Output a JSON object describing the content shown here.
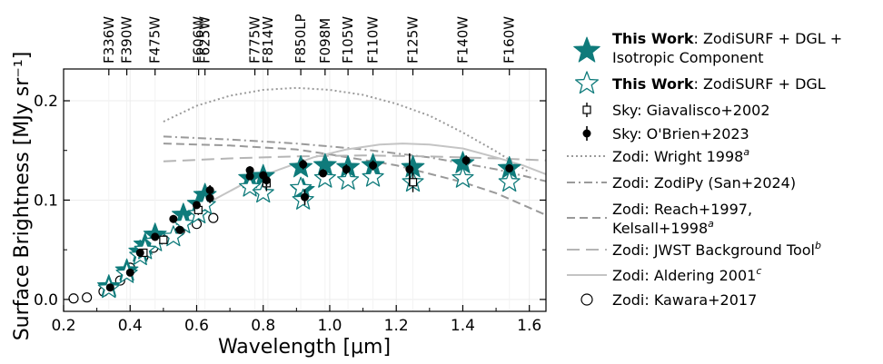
{
  "chart_data": {
    "type": "scatter",
    "xlabel": "Wavelength [μm]",
    "ylabel": "Surface Brightness [MJy sr⁻¹]",
    "xlim": [
      0.2,
      1.65
    ],
    "ylim": [
      -0.012,
      0.232
    ],
    "xticks": [
      0.2,
      0.4,
      0.6,
      0.8,
      1.0,
      1.2,
      1.4,
      1.6
    ],
    "xtick_labels": [
      "0.2",
      "0.4",
      "0.6",
      "0.8",
      "1.0",
      "1.2",
      "1.4",
      "1.6"
    ],
    "yticks": [
      0.0,
      0.1,
      0.2
    ],
    "ytick_labels": [
      "0.0",
      "0.1",
      "0.2"
    ],
    "grid": true,
    "filters": [
      {
        "name": "F336W",
        "x": 0.336
      },
      {
        "name": "F390W",
        "x": 0.39
      },
      {
        "name": "F475W",
        "x": 0.475
      },
      {
        "name": "F606W",
        "x": 0.606
      },
      {
        "name": "F625W",
        "x": 0.625
      },
      {
        "name": "F775W",
        "x": 0.775
      },
      {
        "name": "F814W",
        "x": 0.814
      },
      {
        "name": "F850LP",
        "x": 0.913
      },
      {
        "name": "F098M",
        "x": 0.986
      },
      {
        "name": "F105W",
        "x": 1.055
      },
      {
        "name": "F110W",
        "x": 1.13
      },
      {
        "name": "F125W",
        "x": 1.25
      },
      {
        "name": "F140W",
        "x": 1.4
      },
      {
        "name": "F160W",
        "x": 1.54
      }
    ],
    "series": {
      "this_work_full": {
        "name": "This Work: ZodiSURF + DGL + Isotropic Component",
        "color": "#0f7b7b",
        "points": [
          [
            0.336,
            0.013
          ],
          [
            0.39,
            0.029
          ],
          [
            0.43,
            0.048
          ],
          [
            0.475,
            0.065
          ],
          [
            0.445,
            0.055
          ],
          [
            0.56,
            0.085
          ],
          [
            0.606,
            0.096
          ],
          [
            0.625,
            0.105
          ],
          [
            0.76,
            0.122
          ],
          [
            0.8,
            0.124
          ],
          [
            0.913,
            0.133
          ],
          [
            0.92,
            0.11
          ],
          [
            0.986,
            0.135
          ],
          [
            1.055,
            0.133
          ],
          [
            1.13,
            0.135
          ],
          [
            1.25,
            0.133
          ],
          [
            1.4,
            0.137
          ],
          [
            1.54,
            0.132
          ]
        ]
      },
      "this_work_dgl": {
        "name": "This Work: ZodiSURF + DGL",
        "color": "#0f7b7b",
        "points": [
          [
            0.336,
            0.011
          ],
          [
            0.39,
            0.026
          ],
          [
            0.43,
            0.044
          ],
          [
            0.475,
            0.058
          ],
          [
            0.445,
            0.05
          ],
          [
            0.53,
            0.063
          ],
          [
            0.56,
            0.076
          ],
          [
            0.606,
            0.086
          ],
          [
            0.625,
            0.095
          ],
          [
            0.76,
            0.113
          ],
          [
            0.8,
            0.107
          ],
          [
            0.913,
            0.112
          ],
          [
            0.92,
            0.1
          ],
          [
            0.986,
            0.122
          ],
          [
            1.055,
            0.12
          ],
          [
            1.13,
            0.123
          ],
          [
            1.25,
            0.118
          ],
          [
            1.4,
            0.122
          ],
          [
            1.54,
            0.118
          ]
        ]
      },
      "giavalisco": {
        "name": "Sky: Giavalisco+2002",
        "points": [
          [
            0.44,
            0.047,
            0.004
          ],
          [
            0.5,
            0.06,
            0.004
          ],
          [
            0.605,
            0.09,
            0.005
          ],
          [
            0.81,
            0.117,
            0.008
          ],
          [
            1.25,
            0.118,
            0.01
          ]
        ]
      },
      "obrien": {
        "name": "Sky: O'Brien+2023",
        "points": [
          [
            0.34,
            0.012,
            0.002
          ],
          [
            0.4,
            0.027,
            0.003
          ],
          [
            0.43,
            0.047,
            0.004
          ],
          [
            0.475,
            0.063,
            0.004
          ],
          [
            0.53,
            0.081,
            0.004
          ],
          [
            0.55,
            0.07,
            0.004
          ],
          [
            0.6,
            0.095,
            0.004
          ],
          [
            0.64,
            0.11,
            0.005
          ],
          [
            0.64,
            0.102,
            0.005
          ],
          [
            0.76,
            0.13,
            0.004
          ],
          [
            0.76,
            0.124,
            0.004
          ],
          [
            0.8,
            0.125,
            0.004
          ],
          [
            0.81,
            0.12,
            0.006
          ],
          [
            0.92,
            0.136,
            0.005
          ],
          [
            0.925,
            0.103,
            0.008
          ],
          [
            0.98,
            0.127,
            0.004
          ],
          [
            1.05,
            0.131,
            0.005
          ],
          [
            1.13,
            0.135,
            0.005
          ],
          [
            1.24,
            0.131,
            0.016
          ],
          [
            1.41,
            0.14,
            0.005
          ],
          [
            1.54,
            0.132,
            0.004
          ]
        ]
      },
      "wright": {
        "name": "Zodi: Wright 1998",
        "superscript": "a",
        "color": "#9a9a9a",
        "points": [
          [
            0.5,
            0.179
          ],
          [
            0.6,
            0.195
          ],
          [
            0.7,
            0.205
          ],
          [
            0.8,
            0.211
          ],
          [
            0.9,
            0.213
          ],
          [
            1.0,
            0.211
          ],
          [
            1.1,
            0.206
          ],
          [
            1.2,
            0.197
          ],
          [
            1.3,
            0.185
          ],
          [
            1.4,
            0.168
          ],
          [
            1.5,
            0.149
          ],
          [
            1.6,
            0.128
          ]
        ]
      },
      "zodipy": {
        "name": "Zodi: ZodiPy (San+2024)",
        "color": "#9a9a9a",
        "points": [
          [
            0.5,
            0.164
          ],
          [
            0.7,
            0.161
          ],
          [
            0.9,
            0.157
          ],
          [
            1.1,
            0.151
          ],
          [
            1.3,
            0.143
          ],
          [
            1.5,
            0.131
          ],
          [
            1.65,
            0.119
          ]
        ]
      },
      "reach": {
        "name": "Zodi: Reach+1997, Kelsall+1998",
        "superscript": "a",
        "color": "#9a9a9a",
        "points": [
          [
            0.5,
            0.157
          ],
          [
            0.7,
            0.155
          ],
          [
            0.9,
            0.151
          ],
          [
            1.0,
            0.146
          ],
          [
            1.2,
            0.135
          ],
          [
            1.4,
            0.118
          ],
          [
            1.5,
            0.107
          ],
          [
            1.65,
            0.085
          ]
        ]
      },
      "jwst": {
        "name": "Zodi: JWST Background Tool",
        "superscript": "b",
        "color": "#b5b5b5",
        "points": [
          [
            0.5,
            0.139
          ],
          [
            0.7,
            0.142
          ],
          [
            0.9,
            0.144
          ],
          [
            1.1,
            0.145
          ],
          [
            1.3,
            0.144
          ],
          [
            1.5,
            0.142
          ],
          [
            1.65,
            0.14
          ]
        ]
      },
      "aldering": {
        "name": "Zodi: Aldering 2001",
        "superscript": "c",
        "color": "#c4c4c4",
        "points": [
          [
            0.55,
            0.081
          ],
          [
            0.65,
            0.1
          ],
          [
            0.75,
            0.118
          ],
          [
            0.85,
            0.131
          ],
          [
            0.95,
            0.143
          ],
          [
            1.05,
            0.151
          ],
          [
            1.15,
            0.156
          ],
          [
            1.22,
            0.157
          ],
          [
            1.3,
            0.156
          ],
          [
            1.4,
            0.152
          ],
          [
            1.5,
            0.143
          ],
          [
            1.58,
            0.135
          ],
          [
            1.65,
            0.126
          ]
        ]
      },
      "kawara": {
        "name": "Zodi: Kawara+2017",
        "points": [
          [
            0.23,
            0.001
          ],
          [
            0.27,
            0.002
          ],
          [
            0.32,
            0.008
          ],
          [
            0.37,
            0.019
          ],
          [
            0.4,
            0.032
          ],
          [
            0.44,
            0.043
          ],
          [
            0.47,
            0.052
          ],
          [
            0.51,
            0.061
          ],
          [
            0.55,
            0.069
          ],
          [
            0.6,
            0.076
          ],
          [
            0.65,
            0.082
          ]
        ]
      }
    },
    "legend": {
      "placement": "right",
      "entries": [
        {
          "key": "this_work_full",
          "bold": "This Work",
          "rest": ": ZodiSURF + DGL +",
          "line2": "Isotropic Component"
        },
        {
          "key": "this_work_dgl",
          "bold": "This Work",
          "rest": ": ZodiSURF + DGL"
        },
        {
          "key": "giavalisco",
          "text": "Sky: Giavalisco+2002"
        },
        {
          "key": "obrien",
          "text": "Sky: O'Brien+2023"
        },
        {
          "key": "wright",
          "text": "Zodi: Wright 1998",
          "sup": "a"
        },
        {
          "key": "zodipy",
          "text": "Zodi: ZodiPy (San+2024)"
        },
        {
          "key": "reach",
          "text": "Zodi: Reach+1997,",
          "line2": "Kelsall+1998",
          "sup2": "a"
        },
        {
          "key": "jwst",
          "text": "Zodi: JWST Background Tool",
          "sup": "b"
        },
        {
          "key": "aldering",
          "text": "Zodi: Aldering 2001",
          "sup": "c"
        },
        {
          "key": "kawara",
          "text": "Zodi: Kawara+2017"
        }
      ]
    }
  }
}
